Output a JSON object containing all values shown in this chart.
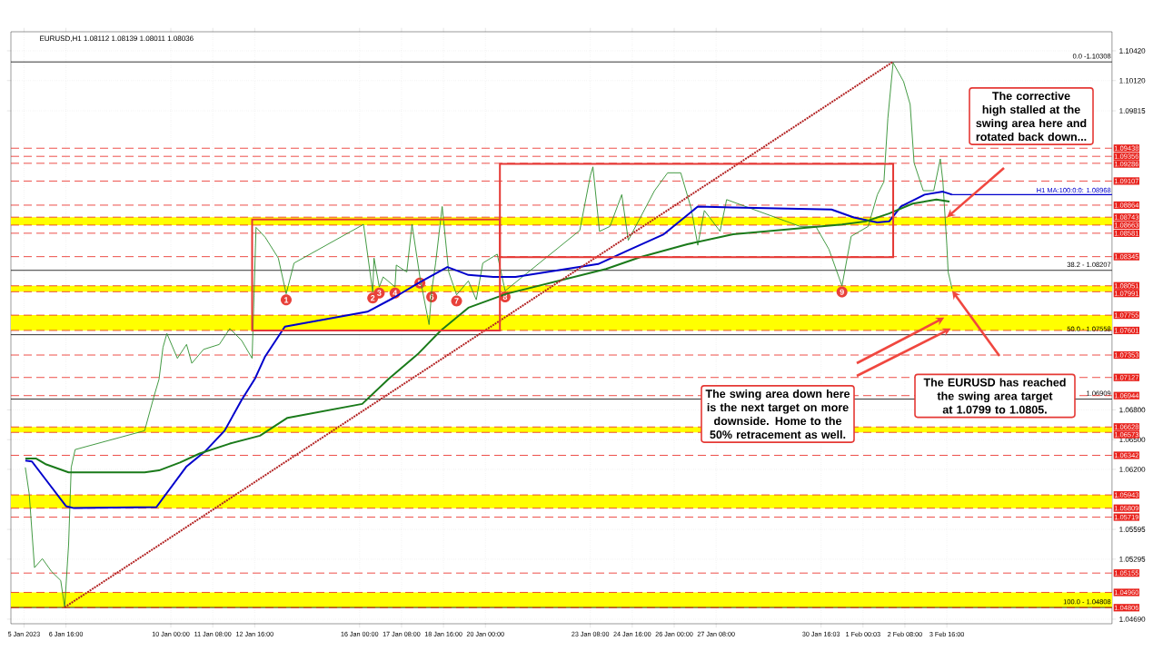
{
  "chart_data": {
    "type": "line",
    "title": "EURUSD,H1 1.08112 1.08139 1.08011 1.08036",
    "xlim": [
      "2023-01-04T22:00",
      "2023-02-08T22:00"
    ],
    "ylim": [
      1.04644,
      1.10612
    ],
    "xticks": [
      {
        "value": "2023-01-05T08:00",
        "label": "5 Jan 2023"
      },
      {
        "value": "2023-01-06T16:00",
        "label": "6 Jan 16:00"
      },
      {
        "value": "2023-01-10T00:00",
        "label": "10 Jan 00:00"
      },
      {
        "value": "2023-01-11T08:00",
        "label": "11 Jan 08:00"
      },
      {
        "value": "2023-01-12T16:00",
        "label": "12 Jan 16:00"
      },
      {
        "value": "2023-01-16T00:00",
        "label": "16 Jan 00:00"
      },
      {
        "value": "2023-01-17T08:00",
        "label": "17 Jan 08:00"
      },
      {
        "value": "2023-01-18T16:00",
        "label": "18 Jan 16:00"
      },
      {
        "value": "2023-01-20T00:00",
        "label": "20 Jan 00:00"
      },
      {
        "value": "2023-01-23T08:00",
        "label": "23 Jan 08:00"
      },
      {
        "value": "2023-01-24T16:00",
        "label": "24 Jan 16:00"
      },
      {
        "value": "2023-01-26T00:00",
        "label": "26 Jan 00:00"
      },
      {
        "value": "2023-01-27T08:00",
        "label": "27 Jan 08:00"
      },
      {
        "value": "2023-01-30T16:03",
        "label": "30 Jan 16:03"
      },
      {
        "value": "2023-02-01T00:03",
        "label": "1 Feb 00:03"
      },
      {
        "value": "2023-02-02T08:00",
        "label": "2 Feb 08:00"
      },
      {
        "value": "2023-02-03T16:00",
        "label": "3 Feb 16:00"
      }
    ],
    "yticks": [
      {
        "value": 1.0469,
        "label": "1.04690"
      },
      1.05295,
      1.05595,
      {
        "value": 1.062,
        "label": "1.06200"
      },
      {
        "value": 1.065,
        "label": "1.06500"
      },
      {
        "value": 1.068,
        "label": "1.06800"
      },
      1.09815,
      {
        "value": 1.1012,
        "label": "1.10120"
      },
      {
        "value": 1.1042,
        "label": "1.10420"
      }
    ],
    "grid": true,
    "series": [
      {
        "color": "#2f8f2f",
        "x": [
          "2023-01-05T09:00",
          "2023-01-05T12:00",
          "2023-01-05T16:00",
          "2023-01-05T22:00",
          "2023-01-06T05:00",
          "2023-01-06T12:00",
          "2023-01-06T15:00",
          "2023-01-06T18:00",
          "2023-01-06T20:00",
          "2023-01-06T23:00",
          "2023-01-09T04:00",
          "2023-01-09T11:00",
          "2023-01-09T15:00",
          "2023-01-09T18:00",
          "2023-01-09T21:00",
          "2023-01-10T05:00",
          "2023-01-10T12:00",
          "2023-01-10T16:00",
          "2023-01-11T01:00",
          "2023-01-11T13:00",
          "2023-01-11T21:00",
          "2023-01-12T06:00",
          "2023-01-12T14:00",
          "2023-01-12T17:00",
          "2023-01-13T00:00",
          "2023-01-13T10:00",
          "2023-01-13T16:00",
          "2023-01-13T22:00",
          "2023-01-16T03:00",
          "2023-01-16T10:00",
          "2023-01-16T11:00",
          "2023-01-16T15:00",
          "2023-01-16T18:00",
          "2023-01-17T03:00",
          "2023-01-17T04:00",
          "2023-01-17T12:00",
          "2023-01-17T16:00",
          "2023-01-17T22:00",
          "2023-01-18T05:00",
          "2023-01-18T07:00",
          "2023-01-18T10:00",
          "2023-01-18T15:00",
          "2023-01-18T20:00",
          "2023-01-19T02:00",
          "2023-01-19T11:00",
          "2023-01-19T17:00",
          "2023-01-19T22:00",
          "2023-01-20T09:00",
          "2023-01-20T15:00",
          "2023-01-23T00:00",
          "2023-01-23T08:00",
          "2023-01-23T10:00",
          "2023-01-23T15:00",
          "2023-01-23T23:00",
          "2023-01-24T08:00",
          "2023-01-24T13:00",
          "2023-01-25T09:00",
          "2023-01-25T19:00",
          "2023-01-26T05:00",
          "2023-01-26T13:00",
          "2023-01-26T18:00",
          "2023-01-26T23:00",
          "2023-01-27T11:00",
          "2023-01-27T16:00",
          "2023-01-30T00:00",
          "2023-01-30T12:00",
          "2023-01-30T22:00",
          "2023-01-31T08:00",
          "2023-01-31T15:00",
          "2023-02-01T04:00",
          "2023-02-01T11:00",
          "2023-02-01T16:00",
          "2023-02-01T19:00",
          "2023-02-01T23:00",
          "2023-02-02T07:00",
          "2023-02-02T12:00",
          "2023-02-02T15:00",
          "2023-02-02T22:00",
          "2023-02-03T06:00",
          "2023-02-03T11:00",
          "2023-02-03T13:00",
          "2023-02-03T16:00",
          "2023-02-03T17:00",
          "2023-02-03T20:00"
        ],
        "values": [
          1.0622,
          1.0595,
          1.0521,
          1.053,
          1.0517,
          1.0508,
          1.0481,
          1.0544,
          1.0622,
          1.064,
          1.0659,
          1.0693,
          1.0711,
          1.0743,
          1.0757,
          1.0732,
          1.0746,
          1.0727,
          1.0741,
          1.0746,
          1.0762,
          1.075,
          1.0732,
          1.0864,
          1.0854,
          1.0833,
          1.0797,
          1.0828,
          1.0867,
          1.0799,
          1.0833,
          1.0804,
          1.0814,
          1.0804,
          1.0826,
          1.0819,
          1.0867,
          1.0814,
          1.0766,
          1.08,
          1.0828,
          1.0885,
          1.0819,
          1.0796,
          1.081,
          1.0791,
          1.0828,
          1.0837,
          1.08,
          1.0861,
          1.0916,
          1.0925,
          1.086,
          1.0865,
          1.0897,
          1.0851,
          1.0901,
          1.0919,
          1.0919,
          1.0883,
          1.0846,
          1.0881,
          1.086,
          1.0892,
          1.0865,
          1.0865,
          1.0842,
          1.0805,
          1.0855,
          1.0865,
          1.0897,
          1.091,
          1.0974,
          1.103,
          1.1011,
          1.0988,
          1.0929,
          1.0901,
          1.0901,
          1.0933,
          1.091,
          1.0846,
          1.0819,
          1.0802
        ]
      },
      {
        "name": "H1 MA:100:0:0: 1.08968",
        "color": "#0000cc",
        "x": [
          "2023-01-05T09:00",
          "2023-01-05T14:00",
          "2023-01-06T01:00",
          "2023-01-06T16:00",
          "2023-01-06T22:00",
          "2023-01-09T13:00",
          "2023-01-10T12:00",
          "2023-01-11T02:00",
          "2023-01-11T17:00",
          "2023-01-12T06:00",
          "2023-01-12T16:00",
          "2023-01-13T00:00",
          "2023-01-13T15:00",
          "2023-01-16T06:00",
          "2023-01-17T02:00",
          "2023-01-17T21:00",
          "2023-01-18T19:00",
          "2023-01-19T11:00",
          "2023-01-20T06:00",
          "2023-01-20T23:00",
          "2023-01-23T14:00",
          "2023-01-24T13:00",
          "2023-01-25T16:00",
          "2023-01-26T18:00",
          "2023-01-27T21:00",
          "2023-01-31T00:00",
          "2023-01-31T17:00",
          "2023-02-01T11:00",
          "2023-02-01T20:00",
          "2023-02-02T05:00",
          "2023-02-02T23:00",
          "2023-02-03T13:00",
          "2023-02-03T20:00"
        ],
        "values": [
          1.0629,
          1.0628,
          1.0609,
          1.0583,
          1.0581,
          1.0582,
          1.0623,
          1.0638,
          1.0659,
          1.069,
          1.0711,
          1.0734,
          1.0764,
          1.0779,
          1.0793,
          1.0808,
          1.0824,
          1.0816,
          1.0814,
          1.0814,
          1.0827,
          1.0841,
          1.0857,
          1.0885,
          1.0884,
          1.0882,
          1.0874,
          1.0869,
          1.087,
          1.0885,
          1.0897,
          1.09,
          1.0897
        ]
      },
      {
        "color": "#1a7a1a",
        "x": [
          "2023-01-05T09:00",
          "2023-01-05T17:00",
          "2023-01-06T01:00",
          "2023-01-06T18:00",
          "2023-01-09T04:00",
          "2023-01-09T15:00",
          "2023-01-10T07:00",
          "2023-01-10T22:00",
          "2023-01-11T21:00",
          "2023-01-12T20:00",
          "2023-01-13T17:00",
          "2023-01-16T02:00",
          "2023-01-16T22:00",
          "2023-01-17T21:00",
          "2023-01-18T14:00",
          "2023-01-19T11:00",
          "2023-01-20T16:00",
          "2023-01-23T20:00",
          "2023-01-24T22:00",
          "2023-01-26T10:00",
          "2023-01-27T21:00",
          "2023-01-31T08:00",
          "2023-02-01T02:00",
          "2023-02-01T20:00",
          "2023-02-02T14:00",
          "2023-02-03T08:00",
          "2023-02-03T18:00"
        ],
        "values": [
          1.0631,
          1.0631,
          1.0625,
          1.0617,
          1.0617,
          1.0619,
          1.0627,
          1.0636,
          1.0646,
          1.0654,
          1.0672,
          1.0686,
          1.0711,
          1.0737,
          1.076,
          1.0783,
          1.0797,
          1.0822,
          1.0834,
          1.0847,
          1.0857,
          1.0867,
          1.087,
          1.0878,
          1.0888,
          1.0892,
          1.089
        ]
      },
      {
        "color": "#b22222",
        "line_style": "dotted",
        "x": [
          "2023-01-06T15:00",
          "2023-02-01T23:00"
        ],
        "values": [
          1.0481,
          1.1031
        ]
      }
    ],
    "bands": [
      {
        "axis": "y",
        "from": 1.08663,
        "to": 1.08743,
        "color": "#ffff00"
      },
      {
        "axis": "y",
        "from": 1.07991,
        "to": 1.08051,
        "color": "#ffff00"
      },
      {
        "axis": "y",
        "from": 1.07601,
        "to": 1.07755,
        "color": "#ffff00"
      },
      {
        "axis": "y",
        "from": 1.06573,
        "to": 1.06628,
        "color": "#ffff00"
      },
      {
        "axis": "y",
        "from": 1.05809,
        "to": 1.05943,
        "color": "#ffff00"
      },
      {
        "axis": "y",
        "from": 1.04806,
        "to": 1.0496,
        "color": "#ffff00"
      }
    ],
    "ref_lines": [
      {
        "axis": "y",
        "value": 1.10308,
        "color": "#000000",
        "line_style": "solid"
      },
      {
        "axis": "y",
        "value": 1.08207,
        "color": "#000000",
        "line_style": "solid"
      },
      {
        "axis": "y",
        "value": 1.07558,
        "color": "#000000",
        "line_style": "solid"
      },
      {
        "axis": "y",
        "value": 1.06909,
        "label": "1.06909",
        "color": "#000000",
        "line_style": "solid"
      },
      {
        "axis": "y",
        "value": 1.04808,
        "color": "#000000",
        "line_style": "solid"
      },
      {
        "axis": "y",
        "value": 1.09438,
        "label": "1.09438",
        "color": "#e8221c",
        "line_style": "dashed"
      },
      {
        "axis": "y",
        "value": 1.09356,
        "label": "1.09356",
        "color": "#e8221c",
        "line_style": "dashed"
      },
      {
        "axis": "y",
        "value": 1.09286,
        "label": "1.09286",
        "color": "#e8221c",
        "line_style": "dashed"
      },
      {
        "axis": "y",
        "value": 1.09107,
        "label": "1.09107",
        "color": "#e8221c",
        "line_style": "dashed"
      },
      {
        "axis": "y",
        "value": 1.08864,
        "label": "1.08864",
        "color": "#e8221c",
        "line_style": "dashed"
      },
      {
        "axis": "y",
        "value": 1.08743,
        "label": "1.08743",
        "color": "#e8221c",
        "line_style": "dashed"
      },
      {
        "axis": "y",
        "value": 1.08663,
        "label": "1.08663",
        "color": "#e8221c",
        "line_style": "dashed"
      },
      {
        "axis": "y",
        "value": 1.08581,
        "label": "1.08581",
        "color": "#e8221c",
        "line_style": "dashed"
      },
      {
        "axis": "y",
        "value": 1.08345,
        "label": "1.08345",
        "color": "#e8221c",
        "line_style": "dashed"
      },
      {
        "axis": "y",
        "value": 1.08051,
        "label": "1.08051",
        "color": "#e8221c",
        "line_style": "dashed"
      },
      {
        "axis": "y",
        "value": 1.07991,
        "label": "1.07991",
        "color": "#e8221c",
        "line_style": "dashed"
      },
      {
        "axis": "y",
        "value": 1.07755,
        "label": "1.07755",
        "color": "#e8221c",
        "line_style": "dashed"
      },
      {
        "axis": "y",
        "value": 1.07601,
        "label": "1.07601",
        "color": "#e8221c",
        "line_style": "dashed"
      },
      {
        "axis": "y",
        "value": 1.07353,
        "label": "1.07353",
        "color": "#e8221c",
        "line_style": "dashed"
      },
      {
        "axis": "y",
        "value": 1.07127,
        "label": "1.07127",
        "color": "#e8221c",
        "line_style": "dashed"
      },
      {
        "axis": "y",
        "value": 1.06944,
        "label": "1.06944",
        "color": "#e8221c",
        "line_style": "dashed"
      },
      {
        "axis": "y",
        "value": 1.06628,
        "label": "1.06628",
        "color": "#e8221c",
        "line_style": "dashed"
      },
      {
        "axis": "y",
        "value": 1.06573,
        "label": "1.06573",
        "color": "#e8221c",
        "line_style": "dashed"
      },
      {
        "axis": "y",
        "value": 1.06342,
        "label": "1.06342",
        "color": "#e8221c",
        "line_style": "dashed"
      },
      {
        "axis": "y",
        "value": 1.05943,
        "label": "1.05943",
        "color": "#e8221c",
        "line_style": "dashed"
      },
      {
        "axis": "y",
        "value": 1.05809,
        "label": "1.05809",
        "color": "#e8221c",
        "line_style": "dashed"
      },
      {
        "axis": "y",
        "value": 1.05719,
        "label": "1.05719",
        "color": "#e8221c",
        "line_style": "dashed"
      },
      {
        "axis": "y",
        "value": 1.05155,
        "label": "1.05155",
        "color": "#e8221c",
        "line_style": "dashed"
      },
      {
        "axis": "y",
        "value": 1.0496,
        "label": "1.04960",
        "color": "#e8221c",
        "line_style": "dashed"
      },
      {
        "axis": "y",
        "value": 1.04806,
        "label": "1.04806",
        "color": "#e8221c",
        "line_style": "dashed"
      }
    ],
    "annotations": [
      {
        "text": "1",
        "x": "2023-01-13T16:00",
        "y": 1.0797
      },
      {
        "text": "2",
        "x": "2023-01-16T10:00",
        "y": 1.0799
      },
      {
        "text": "3",
        "x": "2023-01-16T15:00",
        "y": 1.0804
      },
      {
        "text": "4",
        "x": "2023-01-17T03:00",
        "y": 1.0804
      },
      {
        "text": "5",
        "x": "2023-01-17T22:00",
        "y": 1.0814
      },
      {
        "text": "6",
        "x": "2023-01-18T07:00",
        "y": 1.08
      },
      {
        "text": "7",
        "x": "2023-01-19T02:00",
        "y": 1.0796
      },
      {
        "text": "8",
        "x": "2023-01-20T15:00",
        "y": 1.08
      },
      {
        "text": "9",
        "x": "2023-01-31T08:00",
        "y": 1.0805
      },
      {
        "text": "0.0 -1.10308",
        "y": 1.10308
      },
      {
        "text": "38.2 - 1.08207",
        "y": 1.08207
      },
      {
        "text": "50.0 - 1.07558",
        "y": 1.07558
      },
      {
        "text": "100.0 - 1.04808",
        "y": 1.04808
      },
      "The corrective high stalled at the swing area here and rotated back down...",
      "The swing area down here is the next target on more downside. Home to the 50% retracement as well.",
      "The EURUSD has reached the swing area target at 1.0799 to 1.0805."
    ]
  }
}
